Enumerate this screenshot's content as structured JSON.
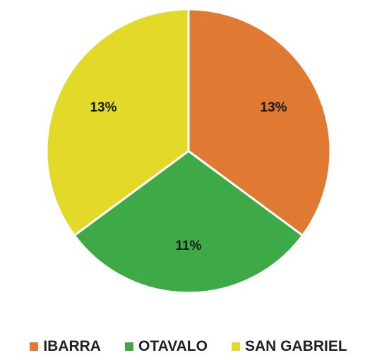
{
  "chart_data": {
    "type": "pie",
    "slices": [
      {
        "label": "IBARRA",
        "value": 13,
        "display": "13%",
        "color": "#E07A33"
      },
      {
        "label": "OTAVALO",
        "value": 11,
        "display": "11%",
        "color": "#3DAA47"
      },
      {
        "label": "SAN GABRIEL",
        "value": 13,
        "display": "13%",
        "color": "#E3D929"
      }
    ],
    "legend": {
      "position": "bottom"
    }
  }
}
